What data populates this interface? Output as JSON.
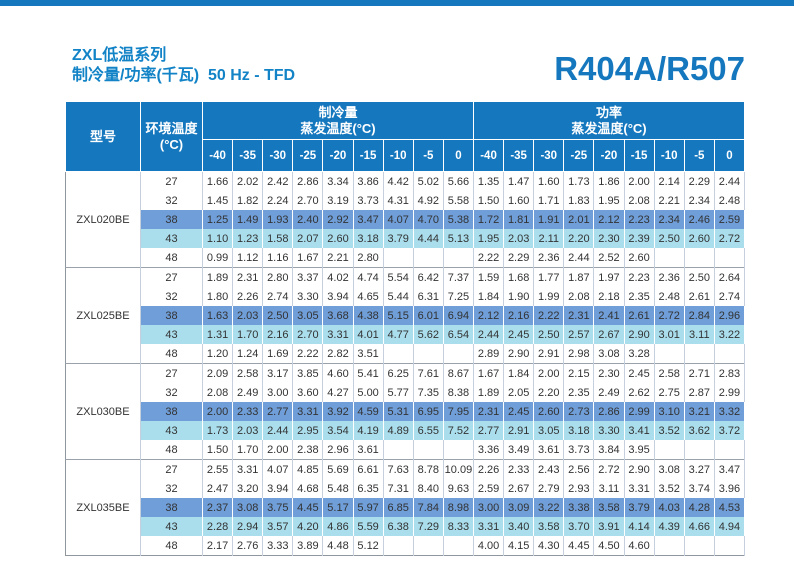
{
  "page": {
    "title_line1": "ZXL低温系列",
    "title_line2": "制冷量/功率(千瓦)  50 Hz - TFD",
    "refrigerant": "R404A/R507"
  },
  "colors": {
    "brand_blue": "#1577BE",
    "title_blue": "#1283C6",
    "row_highlight_medium": "#6f9ed8",
    "row_highlight_light": "#aadeed"
  },
  "table": {
    "headers": {
      "model": "型号",
      "ambient_line1": "环境温度",
      "ambient_line2": "(°C)",
      "capacity_group_line1": "制冷量",
      "capacity_group_line2": "蒸发温度(°C)",
      "power_group_line1": "功率",
      "power_group_line2": "蒸发温度(°C)",
      "evap_temps": [
        "-40",
        "-35",
        "-30",
        "-25",
        "-20",
        "-15",
        "-10",
        "-5",
        "0"
      ]
    },
    "groups": [
      {
        "model": "ZXL020BE",
        "rows": [
          {
            "ambient": "27",
            "capacity": [
              "1.66",
              "2.02",
              "2.42",
              "2.86",
              "3.34",
              "3.86",
              "4.42",
              "5.02",
              "5.66"
            ],
            "power": [
              "1.35",
              "1.47",
              "1.60",
              "1.73",
              "1.86",
              "2.00",
              "2.14",
              "2.29",
              "2.44"
            ]
          },
          {
            "ambient": "32",
            "capacity": [
              "1.45",
              "1.82",
              "2.24",
              "2.70",
              "3.19",
              "3.73",
              "4.31",
              "4.92",
              "5.58"
            ],
            "power": [
              "1.50",
              "1.60",
              "1.71",
              "1.83",
              "1.95",
              "2.08",
              "2.21",
              "2.34",
              "2.48"
            ]
          },
          {
            "ambient": "38",
            "capacity": [
              "1.25",
              "1.49",
              "1.93",
              "2.40",
              "2.92",
              "3.47",
              "4.07",
              "4.70",
              "5.38"
            ],
            "power": [
              "1.72",
              "1.81",
              "1.91",
              "2.01",
              "2.12",
              "2.23",
              "2.34",
              "2.46",
              "2.59"
            ]
          },
          {
            "ambient": "43",
            "capacity": [
              "1.10",
              "1.23",
              "1.58",
              "2.07",
              "2.60",
              "3.18",
              "3.79",
              "4.44",
              "5.13"
            ],
            "power": [
              "1.95",
              "2.03",
              "2.11",
              "2.20",
              "2.30",
              "2.39",
              "2.50",
              "2.60",
              "2.72"
            ]
          },
          {
            "ambient": "48",
            "capacity": [
              "0.99",
              "1.12",
              "1.16",
              "1.67",
              "2.21",
              "2.80",
              "",
              "",
              ""
            ],
            "power": [
              "2.22",
              "2.29",
              "2.36",
              "2.44",
              "2.52",
              "2.60",
              "",
              "",
              ""
            ]
          }
        ]
      },
      {
        "model": "ZXL025BE",
        "rows": [
          {
            "ambient": "27",
            "capacity": [
              "1.89",
              "2.31",
              "2.80",
              "3.37",
              "4.02",
              "4.74",
              "5.54",
              "6.42",
              "7.37"
            ],
            "power": [
              "1.59",
              "1.68",
              "1.77",
              "1.87",
              "1.97",
              "2.23",
              "2.36",
              "2.50",
              "2.64"
            ]
          },
          {
            "ambient": "32",
            "capacity": [
              "1.80",
              "2.26",
              "2.74",
              "3.30",
              "3.94",
              "4.65",
              "5.44",
              "6.31",
              "7.25"
            ],
            "power": [
              "1.84",
              "1.90",
              "1.99",
              "2.08",
              "2.18",
              "2.35",
              "2.48",
              "2.61",
              "2.74"
            ]
          },
          {
            "ambient": "38",
            "capacity": [
              "1.63",
              "2.03",
              "2.50",
              "3.05",
              "3.68",
              "4.38",
              "5.15",
              "6.01",
              "6.94"
            ],
            "power": [
              "2.12",
              "2.16",
              "2.22",
              "2.31",
              "2.41",
              "2.61",
              "2.72",
              "2.84",
              "2.96"
            ]
          },
          {
            "ambient": "43",
            "capacity": [
              "1.31",
              "1.70",
              "2.16",
              "2.70",
              "3.31",
              "4.01",
              "4.77",
              "5.62",
              "6.54"
            ],
            "power": [
              "2.44",
              "2.45",
              "2.50",
              "2.57",
              "2.67",
              "2.90",
              "3.01",
              "3.11",
              "3.22"
            ]
          },
          {
            "ambient": "48",
            "capacity": [
              "1.20",
              "1.24",
              "1.69",
              "2.22",
              "2.82",
              "3.51",
              "",
              "",
              ""
            ],
            "power": [
              "2.89",
              "2.90",
              "2.91",
              "2.98",
              "3.08",
              "3.28",
              "",
              "",
              ""
            ]
          }
        ]
      },
      {
        "model": "ZXL030BE",
        "rows": [
          {
            "ambient": "27",
            "capacity": [
              "2.09",
              "2.58",
              "3.17",
              "3.85",
              "4.60",
              "5.41",
              "6.25",
              "7.61",
              "8.67"
            ],
            "power": [
              "1.67",
              "1.84",
              "2.00",
              "2.15",
              "2.30",
              "2.45",
              "2.58",
              "2.71",
              "2.83"
            ]
          },
          {
            "ambient": "32",
            "capacity": [
              "2.08",
              "2.49",
              "3.00",
              "3.60",
              "4.27",
              "5.00",
              "5.77",
              "7.35",
              "8.38"
            ],
            "power": [
              "1.89",
              "2.05",
              "2.20",
              "2.35",
              "2.49",
              "2.62",
              "2.75",
              "2.87",
              "2.99"
            ]
          },
          {
            "ambient": "38",
            "capacity": [
              "2.00",
              "2.33",
              "2.77",
              "3.31",
              "3.92",
              "4.59",
              "5.31",
              "6.95",
              "7.95"
            ],
            "power": [
              "2.31",
              "2.45",
              "2.60",
              "2.73",
              "2.86",
              "2.99",
              "3.10",
              "3.21",
              "3.32"
            ]
          },
          {
            "ambient": "43",
            "capacity": [
              "1.73",
              "2.03",
              "2.44",
              "2.95",
              "3.54",
              "4.19",
              "4.89",
              "6.55",
              "7.52"
            ],
            "power": [
              "2.77",
              "2.91",
              "3.05",
              "3.18",
              "3.30",
              "3.41",
              "3.52",
              "3.62",
              "3.72"
            ]
          },
          {
            "ambient": "48",
            "capacity": [
              "1.50",
              "1.70",
              "2.00",
              "2.38",
              "2.96",
              "3.61",
              "",
              "",
              ""
            ],
            "power": [
              "3.36",
              "3.49",
              "3.61",
              "3.73",
              "3.84",
              "3.95",
              "",
              "",
              ""
            ]
          }
        ]
      },
      {
        "model": "ZXL035BE",
        "rows": [
          {
            "ambient": "27",
            "capacity": [
              "2.55",
              "3.31",
              "4.07",
              "4.85",
              "5.69",
              "6.61",
              "7.63",
              "8.78",
              "10.09"
            ],
            "power": [
              "2.26",
              "2.33",
              "2.43",
              "2.56",
              "2.72",
              "2.90",
              "3.08",
              "3.27",
              "3.47"
            ]
          },
          {
            "ambient": "32",
            "capacity": [
              "2.47",
              "3.20",
              "3.94",
              "4.68",
              "5.48",
              "6.35",
              "7.31",
              "8.40",
              "9.63"
            ],
            "power": [
              "2.59",
              "2.67",
              "2.79",
              "2.93",
              "3.11",
              "3.31",
              "3.52",
              "3.74",
              "3.96"
            ]
          },
          {
            "ambient": "38",
            "capacity": [
              "2.37",
              "3.08",
              "3.75",
              "4.45",
              "5.17",
              "5.97",
              "6.85",
              "7.84",
              "8.98"
            ],
            "power": [
              "3.00",
              "3.09",
              "3.22",
              "3.38",
              "3.58",
              "3.79",
              "4.03",
              "4.28",
              "4.53"
            ]
          },
          {
            "ambient": "43",
            "capacity": [
              "2.28",
              "2.94",
              "3.57",
              "4.20",
              "4.86",
              "5.59",
              "6.38",
              "7.29",
              "8.33"
            ],
            "power": [
              "3.31",
              "3.40",
              "3.58",
              "3.70",
              "3.91",
              "4.14",
              "4.39",
              "4.66",
              "4.94"
            ]
          },
          {
            "ambient": "48",
            "capacity": [
              "2.17",
              "2.76",
              "3.33",
              "3.89",
              "4.48",
              "5.12",
              "",
              "",
              ""
            ],
            "power": [
              "4.00",
              "4.15",
              "4.30",
              "4.45",
              "4.50",
              "4.60",
              "",
              "",
              ""
            ]
          }
        ]
      }
    ]
  }
}
